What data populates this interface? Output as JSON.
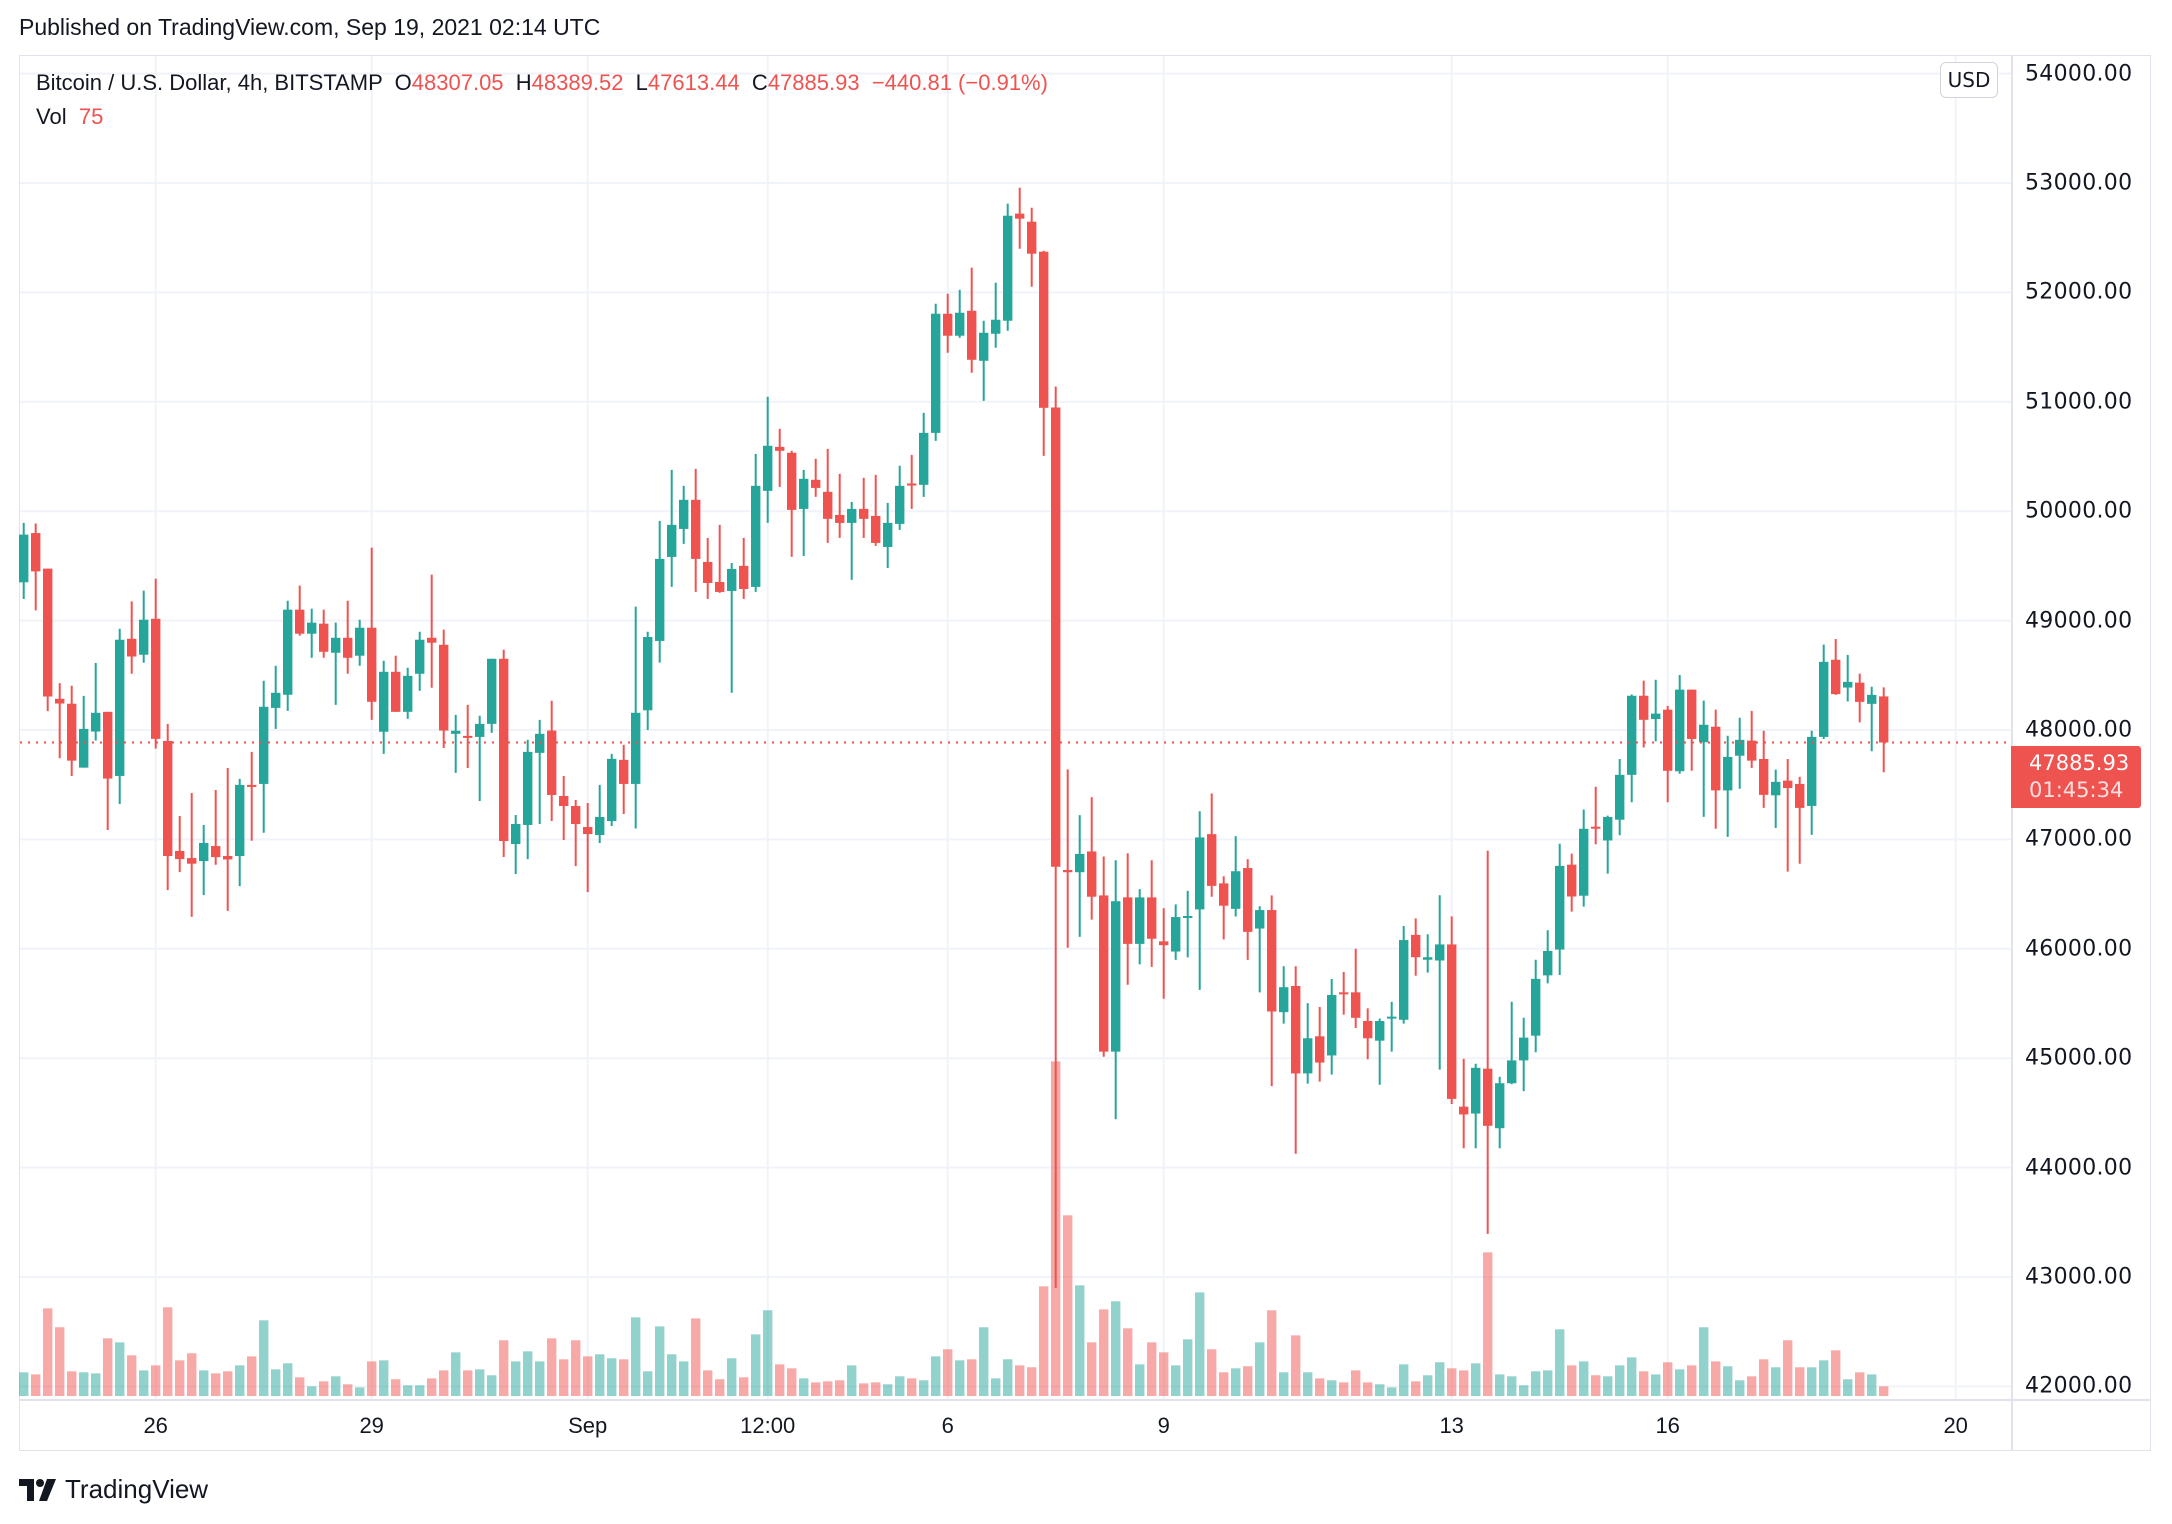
{
  "published": "Published on TradingView.com, Sep 19, 2021 02:14 UTC",
  "legend": {
    "symbol": "Bitcoin / U.S. Dollar, 4h, BITSTAMP",
    "o_label": "O",
    "o": "48307.05",
    "h_label": "H",
    "h": "48389.52",
    "l_label": "L",
    "l": "47613.44",
    "c_label": "C",
    "c": "47885.93",
    "change": "−440.81 (−0.91%)",
    "vol_label": "Vol",
    "vol": "75"
  },
  "currency_badge": "USD",
  "price_tag": {
    "price": "47885.93",
    "countdown": "01:45:34"
  },
  "logo": {
    "text": "TradingView",
    "icon": "tradingview-logo-icon"
  },
  "colors": {
    "up": "#26a69a",
    "down": "#ef5350",
    "grid": "#f0f3fa",
    "current_price_line": "#ef5350"
  },
  "chart_data": {
    "type": "candlestick",
    "title": "Bitcoin / U.S. Dollar, 4h, BITSTAMP",
    "interval": "4h",
    "x_start": "2021-08-24 04:00",
    "current_price": 47885.93,
    "ylim": [
      41900,
      54100
    ],
    "grid": true,
    "y_ticks": [
      "42000.00",
      "43000.00",
      "44000.00",
      "45000.00",
      "46000.00",
      "47000.00",
      "48000.00",
      "49000.00",
      "50000.00",
      "51000.00",
      "52000.00",
      "53000.00",
      "54000.00"
    ],
    "x_ticks": [
      {
        "label": "26",
        "time": "2021-08-26 00:00"
      },
      {
        "label": "29",
        "time": "2021-08-29 00:00"
      },
      {
        "label": "Sep",
        "time": "2021-09-01 00:00"
      },
      {
        "label": "12:00",
        "time": "2021-09-03 12:00"
      },
      {
        "label": "6",
        "time": "2021-09-06 00:00"
      },
      {
        "label": "9",
        "time": "2021-09-09 00:00"
      },
      {
        "label": "13",
        "time": "2021-09-13 00:00"
      },
      {
        "label": "16",
        "time": "2021-09-16 00:00"
      },
      {
        "label": "20",
        "time": "2021-09-20 00:00"
      }
    ],
    "columns": [
      "open",
      "high",
      "low",
      "close",
      "volume"
    ],
    "candles": [
      [
        49350,
        49893,
        49197,
        49786,
        184
      ],
      [
        49800,
        49887,
        49094,
        49450,
        168
      ],
      [
        49475,
        49475,
        48172,
        48306,
        681
      ],
      [
        48285,
        48428,
        47742,
        48242,
        534
      ],
      [
        48240,
        48404,
        47580,
        47720,
        192
      ],
      [
        47656,
        48312,
        47656,
        48010,
        184
      ],
      [
        47986,
        48612,
        47904,
        48157,
        176
      ],
      [
        48166,
        48166,
        47086,
        47556,
        448
      ],
      [
        47580,
        48926,
        47324,
        48825,
        417
      ],
      [
        48834,
        49176,
        48514,
        48672,
        316
      ],
      [
        48688,
        49274,
        48615,
        49008,
        199
      ],
      [
        49017,
        49384,
        47830,
        47919,
        238
      ],
      [
        47900,
        48056,
        46536,
        46848,
        689
      ],
      [
        46894,
        47214,
        46701,
        46820,
        277
      ],
      [
        46829,
        47424,
        46292,
        46778,
        332
      ],
      [
        46802,
        47132,
        46491,
        46967,
        199
      ],
      [
        46939,
        47452,
        46768,
        46838,
        176
      ],
      [
        46848,
        47653,
        46347,
        46817,
        192
      ],
      [
        46848,
        47553,
        46573,
        47498,
        238
      ],
      [
        47498,
        47800,
        46988,
        47483,
        308
      ],
      [
        47507,
        48450,
        47061,
        48212,
        588
      ],
      [
        48202,
        48587,
        48010,
        48340,
        207
      ],
      [
        48322,
        49182,
        48175,
        49100,
        254
      ],
      [
        49100,
        49320,
        48862,
        48880,
        145
      ],
      [
        48880,
        49109,
        48660,
        48981,
        75
      ],
      [
        48972,
        49100,
        48660,
        48715,
        114
      ],
      [
        48706,
        48981,
        48230,
        48843,
        153
      ],
      [
        48843,
        49182,
        48514,
        48660,
        91
      ],
      [
        48679,
        49008,
        48587,
        48935,
        67
      ],
      [
        48935,
        49667,
        48093,
        48258,
        269
      ],
      [
        47984,
        48633,
        47782,
        48532,
        277
      ],
      [
        48532,
        48679,
        48166,
        48166,
        130
      ],
      [
        48166,
        48569,
        48102,
        48495,
        83
      ],
      [
        48514,
        48898,
        48358,
        48825,
        83
      ],
      [
        48843,
        49420,
        48386,
        48798,
        137
      ],
      [
        48779,
        48917,
        47836,
        47995,
        199
      ],
      [
        47965,
        48138,
        47608,
        47993,
        339
      ],
      [
        47946,
        48230,
        47653,
        47928,
        199
      ],
      [
        47937,
        48130,
        47351,
        48056,
        207
      ],
      [
        48056,
        48651,
        47974,
        48651,
        161
      ],
      [
        48651,
        48733,
        46839,
        46985,
        433
      ],
      [
        46958,
        47223,
        46683,
        47141,
        269
      ],
      [
        47132,
        47910,
        46820,
        47800,
        347
      ],
      [
        47791,
        48093,
        47141,
        47965,
        269
      ],
      [
        47995,
        48267,
        47168,
        47406,
        448
      ],
      [
        47397,
        47580,
        46994,
        47305,
        285
      ],
      [
        47305,
        47360,
        46756,
        47141,
        433
      ],
      [
        47113,
        47333,
        46518,
        47049,
        308
      ],
      [
        47040,
        47498,
        46967,
        47205,
        324
      ],
      [
        47168,
        47782,
        47122,
        47736,
        293
      ],
      [
        47727,
        47864,
        47232,
        47507,
        285
      ],
      [
        47507,
        49128,
        47100,
        48157,
        611
      ],
      [
        48180,
        48898,
        48000,
        48850,
        192
      ],
      [
        48814,
        49911,
        48616,
        49564,
        541
      ],
      [
        49582,
        50378,
        49308,
        49875,
        324
      ],
      [
        49838,
        50232,
        49701,
        50104,
        269
      ],
      [
        50104,
        50387,
        49262,
        49564,
        603
      ],
      [
        49536,
        49756,
        49198,
        49344,
        199
      ],
      [
        49353,
        49875,
        49253,
        49262,
        130
      ],
      [
        49271,
        49527,
        48341,
        49472,
        293
      ],
      [
        49500,
        49756,
        49198,
        49289,
        145
      ],
      [
        49308,
        50524,
        49262,
        50232,
        479
      ],
      [
        50186,
        51046,
        49893,
        50598,
        666
      ],
      [
        50588,
        50753,
        50222,
        50552,
        246
      ],
      [
        50534,
        50552,
        49582,
        50012,
        215
      ],
      [
        50021,
        50378,
        49591,
        50296,
        137
      ],
      [
        50287,
        50479,
        50131,
        50213,
        106
      ],
      [
        50177,
        50570,
        49710,
        49930,
        114
      ],
      [
        49966,
        50341,
        49756,
        49893,
        122
      ],
      [
        49893,
        50085,
        49372,
        50021,
        238
      ],
      [
        50021,
        50305,
        49756,
        49930,
        98
      ],
      [
        49957,
        50332,
        49683,
        49710,
        106
      ],
      [
        49673,
        50076,
        49481,
        49893,
        91
      ],
      [
        49884,
        50415,
        49829,
        50232,
        153
      ],
      [
        50253,
        50515,
        50021,
        50241,
        137
      ],
      [
        50241,
        50899,
        50131,
        50716,
        122
      ],
      [
        50716,
        51896,
        50643,
        51805,
        308
      ],
      [
        51805,
        51988,
        51448,
        51604,
        363
      ],
      [
        51604,
        52024,
        51585,
        51814,
        277
      ],
      [
        51832,
        52226,
        51265,
        51384,
        285
      ],
      [
        51375,
        51741,
        51009,
        51631,
        534
      ],
      [
        51622,
        52088,
        51494,
        51750,
        137
      ],
      [
        51741,
        52811,
        51649,
        52701,
        285
      ],
      [
        52720,
        52957,
        52399,
        52674,
        238
      ],
      [
        52646,
        52774,
        52052,
        52354,
        223
      ],
      [
        52372,
        52381,
        50506,
        50945,
        852
      ],
      [
        50948,
        51140,
        42900,
        46750,
        2600
      ],
      [
        46720,
        47640,
        46010,
        46700,
        1404
      ],
      [
        46700,
        47222,
        46109,
        46867,
        860
      ],
      [
        46890,
        47386,
        46267,
        46476,
        417
      ],
      [
        46488,
        46844,
        45013,
        45060,
        673
      ],
      [
        45060,
        46809,
        44442,
        46435,
        736
      ],
      [
        46470,
        46873,
        45671,
        46045,
        526
      ],
      [
        46045,
        46546,
        45858,
        46470,
        246
      ],
      [
        46470,
        46809,
        45835,
        46092,
        417
      ],
      [
        46068,
        46371,
        45543,
        46033,
        339
      ],
      [
        45975,
        46406,
        45899,
        46290,
        238
      ],
      [
        46290,
        46530,
        45922,
        46300,
        440
      ],
      [
        46360,
        47257,
        45625,
        47018,
        805
      ],
      [
        47048,
        47420,
        46476,
        46575,
        363
      ],
      [
        46598,
        46663,
        46086,
        46394,
        184
      ],
      [
        46365,
        47030,
        46295,
        46709,
        215
      ],
      [
        46738,
        46820,
        45899,
        46155,
        231
      ],
      [
        46185,
        46389,
        45602,
        46354,
        417
      ],
      [
        46354,
        46488,
        44745,
        45427,
        666
      ],
      [
        45421,
        45841,
        45316,
        45649,
        184
      ],
      [
        45660,
        45841,
        44127,
        44861,
        471
      ],
      [
        44861,
        45503,
        44768,
        45182,
        184
      ],
      [
        45200,
        45468,
        44786,
        44960,
        137
      ],
      [
        45025,
        45724,
        44850,
        45578,
        122
      ],
      [
        45602,
        45788,
        45398,
        45584,
        106
      ],
      [
        45602,
        46000,
        45276,
        45369,
        199
      ],
      [
        45340,
        45456,
        44990,
        45182,
        106
      ],
      [
        45160,
        45363,
        44757,
        45340,
        91
      ],
      [
        45363,
        45515,
        45060,
        45380,
        67
      ],
      [
        45351,
        46208,
        45316,
        46080,
        246
      ],
      [
        46127,
        46278,
        45754,
        45923,
        114
      ],
      [
        45900,
        46133,
        45782,
        45923,
        161
      ],
      [
        45893,
        46489,
        44896,
        46040,
        262
      ],
      [
        46040,
        46296,
        44581,
        44628,
        215
      ],
      [
        44557,
        44994,
        44177,
        44486,
        199
      ],
      [
        44494,
        44949,
        44177,
        44912,
        254
      ],
      [
        44904,
        46896,
        43394,
        44382,
        1116
      ],
      [
        44360,
        44830,
        44177,
        44771,
        168
      ],
      [
        44771,
        45516,
        44762,
        44980,
        153
      ],
      [
        44980,
        45370,
        44699,
        45188,
        83
      ],
      [
        45206,
        45900,
        45054,
        45725,
        192
      ],
      [
        45757,
        46170,
        45684,
        45980,
        199
      ],
      [
        45993,
        46960,
        45760,
        46758,
        518
      ],
      [
        46769,
        46870,
        46340,
        46478,
        238
      ],
      [
        46485,
        47273,
        46385,
        47097,
        269
      ],
      [
        47116,
        47481,
        46955,
        47108,
        161
      ],
      [
        46990,
        47217,
        46687,
        47205,
        153
      ],
      [
        47180,
        47735,
        47038,
        47590,
        238
      ],
      [
        47590,
        48325,
        47340,
        48313,
        300
      ],
      [
        48313,
        48451,
        47840,
        48093,
        192
      ],
      [
        48100,
        48459,
        47896,
        48150,
        168
      ],
      [
        48186,
        48220,
        47340,
        47627,
        262
      ],
      [
        47623,
        48503,
        47600,
        48369,
        207
      ],
      [
        48369,
        48369,
        47627,
        47918,
        238
      ],
      [
        47888,
        48269,
        47206,
        48048,
        534
      ],
      [
        48030,
        48186,
        47097,
        47448,
        269
      ],
      [
        47448,
        47948,
        47023,
        47754,
        231
      ],
      [
        47765,
        48112,
        47463,
        47910,
        122
      ],
      [
        47903,
        48175,
        47653,
        47720,
        153
      ],
      [
        47735,
        47993,
        47288,
        47407,
        285
      ],
      [
        47403,
        47638,
        47105,
        47526,
        223
      ],
      [
        47537,
        47735,
        46706,
        47470,
        433
      ],
      [
        47507,
        47571,
        46777,
        47288,
        223
      ],
      [
        47306,
        47993,
        47041,
        47937,
        223
      ],
      [
        47937,
        48780,
        47918,
        48623,
        277
      ],
      [
        48642,
        48832,
        48321,
        48328,
        355
      ],
      [
        48388,
        48686,
        48261,
        48440,
        130
      ],
      [
        48433,
        48515,
        48070,
        48257,
        184
      ],
      [
        48239,
        48395,
        47806,
        48321,
        168
      ],
      [
        48307.05,
        48389.52,
        47613.44,
        47885.93,
        75
      ]
    ]
  }
}
